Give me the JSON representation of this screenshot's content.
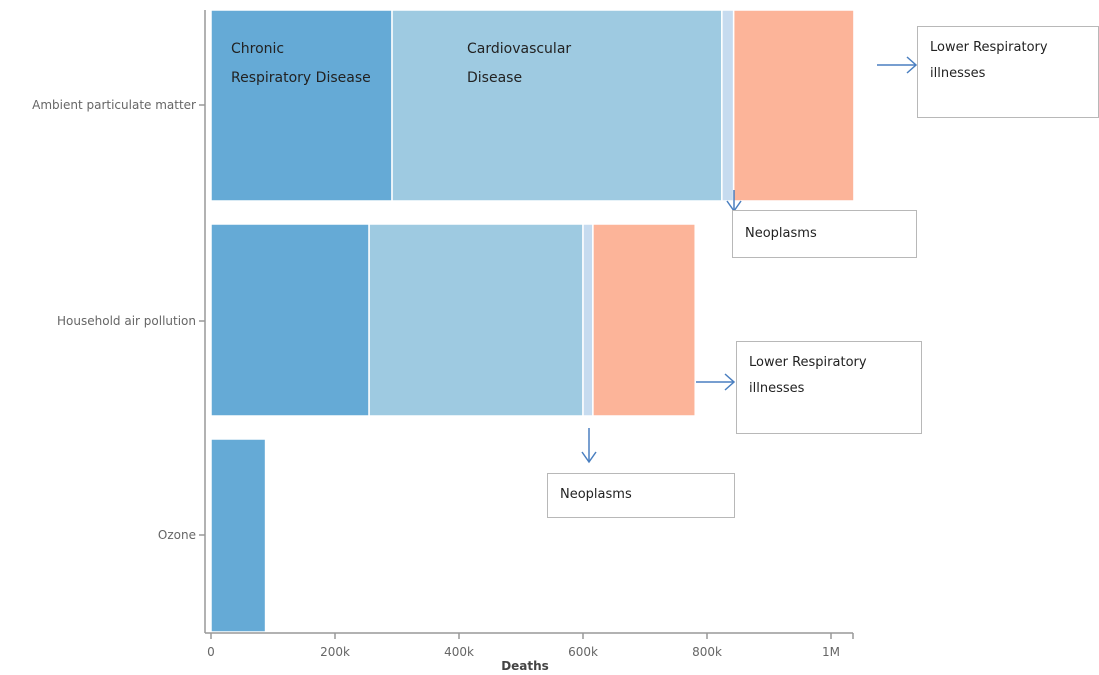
{
  "chart_data": {
    "type": "bar",
    "orientation": "horizontal",
    "stacked": true,
    "categories": [
      "Ambient particulate matter",
      "Household air pollution",
      "Ozone"
    ],
    "series": [
      {
        "name": "Chronic Respiratory Disease",
        "values": [
          292000,
          255000,
          88000
        ],
        "color": "#65aad6"
      },
      {
        "name": "Cardiovascular Disease",
        "values": [
          532000,
          345000,
          0
        ],
        "color": "#9ecae1"
      },
      {
        "name": "Neoplasms",
        "values": [
          19000,
          16000,
          0
        ],
        "color": "#c6dbef"
      },
      {
        "name": "Lower Respiratory illnesses",
        "values": [
          194000,
          165000,
          0
        ],
        "color": "#fcb499"
      }
    ],
    "xlabel": "Deaths",
    "xlim": [
      0,
      1040000
    ],
    "xticks": [
      {
        "value": 0,
        "label": "0"
      },
      {
        "value": 200000,
        "label": "200k"
      },
      {
        "value": 400000,
        "label": "400k"
      },
      {
        "value": 600000,
        "label": "600k"
      },
      {
        "value": 800000,
        "label": "800k"
      },
      {
        "value": 1000000,
        "label": "1M"
      }
    ],
    "grid": false,
    "segment_labels": {
      "chronic": [
        "Chronic",
        "Respiratory Disease"
      ],
      "cardio": [
        "Cardiovascular",
        "Disease"
      ]
    },
    "annotations": [
      {
        "text": "Lower Respiratory illnesses",
        "lines": [
          "Lower Respiratory",
          "illnesses"
        ]
      },
      {
        "text": "Neoplasms",
        "lines": [
          "Neoplasms"
        ]
      },
      {
        "text": "Lower Respiratory illnesses",
        "lines": [
          "Lower Respiratory",
          "illnesses"
        ]
      },
      {
        "text": "Neoplasms",
        "lines": [
          "Neoplasms"
        ]
      }
    ]
  },
  "colors": {
    "axis": "#999999",
    "arrow": "#4a7fc0"
  }
}
